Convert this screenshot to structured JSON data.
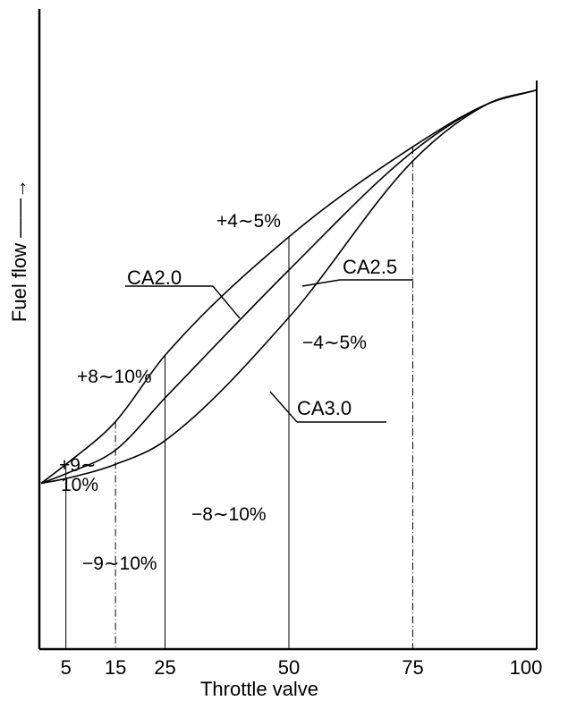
{
  "chart_data": {
    "type": "line",
    "xlabel": "Throttle valve",
    "ylabel": "Fuel flow ——→",
    "xlim": [
      0,
      100
    ],
    "ylim": [
      0,
      100
    ],
    "x_ticks": [
      5,
      15,
      25,
      50,
      75,
      100
    ],
    "x_tick_labels": [
      "5",
      "15",
      "25",
      "50",
      "75",
      "100"
    ],
    "series": [
      {
        "name": "CA2.0",
        "x": [
          0,
          5,
          15,
          25,
          50,
          75,
          90,
          100
        ],
        "y": [
          15,
          19,
          28,
          42,
          67,
          86,
          95,
          98
        ]
      },
      {
        "name": "CA2.5",
        "x": [
          0,
          5,
          15,
          25,
          50,
          75,
          90,
          100
        ],
        "y": [
          15,
          17,
          22,
          33,
          60,
          85,
          95,
          98
        ]
      },
      {
        "name": "CA3.0",
        "x": [
          0,
          5,
          15,
          25,
          50,
          75,
          90,
          100
        ],
        "y": [
          15,
          16,
          19,
          24,
          50,
          83,
          95,
          98
        ]
      }
    ],
    "annotations": [
      {
        "text": "+4∼5%"
      },
      {
        "text": "+8∼10%"
      },
      {
        "text": "+9∼"
      },
      {
        "text": "10%"
      },
      {
        "text": "−4∼5%"
      },
      {
        "text": "−8∼10%"
      },
      {
        "text": "−9∼10%"
      }
    ],
    "grid": false,
    "legend": "none"
  }
}
